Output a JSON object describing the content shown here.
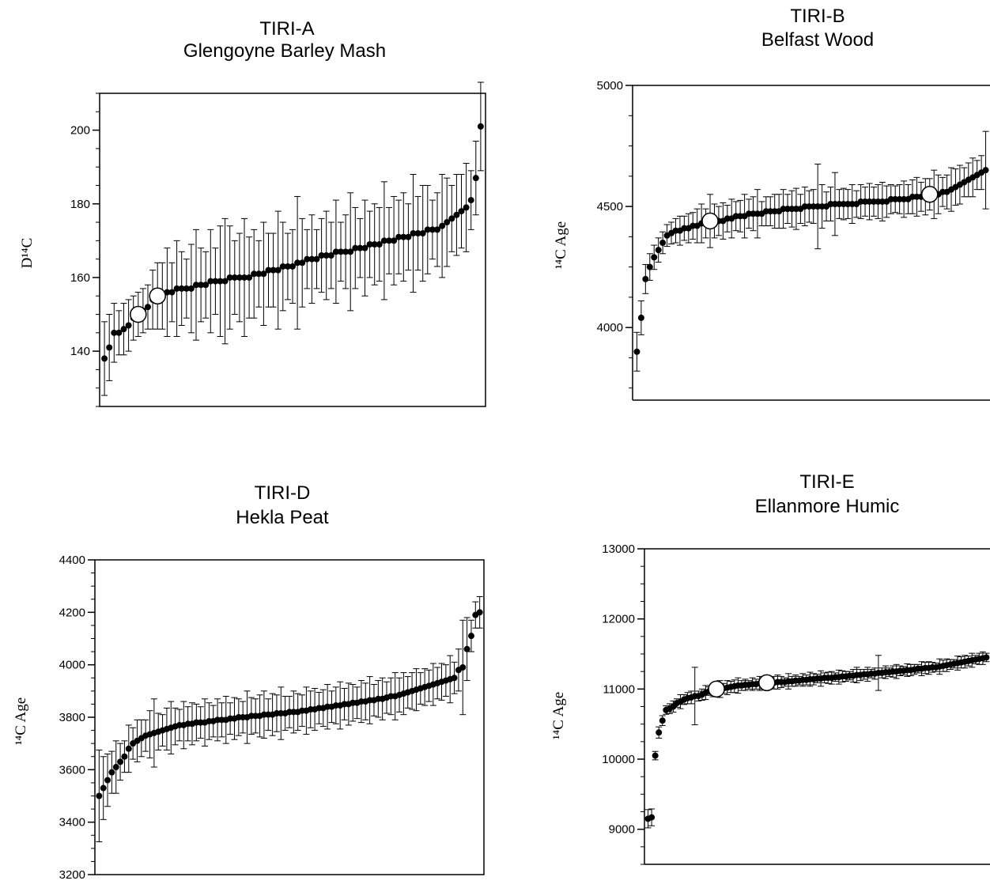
{
  "chart_data": [
    {
      "type": "scatter",
      "title": "TIRI-A",
      "subtitle": "Glengoyne Barley Mash",
      "ylabel": "D¹⁴C",
      "ylim": [
        125,
        210
      ],
      "yticks": [
        140,
        160,
        180,
        200
      ],
      "x_range": [
        0,
        80
      ],
      "n": 79,
      "y": [
        138,
        141,
        145,
        145,
        146,
        147,
        149,
        150,
        151,
        152,
        154,
        155,
        155,
        156,
        156,
        157,
        157,
        157,
        157,
        158,
        158,
        158,
        159,
        159,
        159,
        159,
        160,
        160,
        160,
        160,
        160,
        161,
        161,
        161,
        162,
        162,
        162,
        163,
        163,
        163,
        164,
        164,
        165,
        165,
        165,
        166,
        166,
        166,
        167,
        167,
        167,
        167,
        168,
        168,
        168,
        169,
        169,
        169,
        170,
        170,
        170,
        171,
        171,
        171,
        172,
        172,
        172,
        173,
        173,
        173,
        174,
        175,
        176,
        177,
        178,
        179,
        181,
        187,
        201
      ],
      "err": [
        10,
        9,
        8,
        6,
        7,
        7,
        6,
        6,
        6,
        6,
        8,
        9,
        9,
        12,
        8,
        13,
        10,
        8,
        12,
        15,
        10,
        9,
        14,
        9,
        15,
        17,
        14,
        10,
        12,
        16,
        11,
        12,
        9,
        14,
        10,
        10,
        16,
        12,
        9,
        10,
        18,
        12,
        8,
        12,
        8,
        10,
        12,
        9,
        14,
        8,
        10,
        16,
        11,
        8,
        13,
        9,
        11,
        10,
        16,
        9,
        12,
        10,
        12,
        9,
        16,
        10,
        13,
        12,
        8,
        10,
        14,
        12,
        9,
        11,
        10,
        12,
        8,
        10,
        12
      ],
      "reference_indices": [
        7,
        11
      ]
    },
    {
      "type": "scatter",
      "title": "TIRI-B",
      "subtitle": "Belfast Wood",
      "ylabel": "¹⁴C Age",
      "ylim": [
        3700,
        5000
      ],
      "yticks": [
        4000,
        4500,
        5000
      ],
      "x_range": [
        0,
        83
      ],
      "n": 82,
      "y": [
        3900,
        4040,
        4200,
        4250,
        4290,
        4320,
        4350,
        4380,
        4390,
        4400,
        4400,
        4410,
        4410,
        4420,
        4420,
        4430,
        4430,
        4440,
        4440,
        4440,
        4440,
        4450,
        4450,
        4460,
        4460,
        4460,
        4470,
        4470,
        4470,
        4470,
        4480,
        4480,
        4480,
        4480,
        4490,
        4490,
        4490,
        4490,
        4490,
        4500,
        4500,
        4500,
        4500,
        4500,
        4500,
        4510,
        4510,
        4510,
        4510,
        4510,
        4510,
        4510,
        4520,
        4520,
        4520,
        4520,
        4520,
        4520,
        4520,
        4530,
        4530,
        4530,
        4530,
        4530,
        4540,
        4540,
        4540,
        4540,
        4550,
        4550,
        4550,
        4560,
        4560,
        4570,
        4580,
        4590,
        4600,
        4610,
        4620,
        4630,
        4640,
        4650
      ],
      "err": [
        80,
        70,
        60,
        55,
        50,
        50,
        45,
        45,
        45,
        50,
        60,
        50,
        60,
        55,
        70,
        80,
        60,
        110,
        70,
        60,
        75,
        55,
        80,
        60,
        65,
        90,
        60,
        70,
        100,
        50,
        60,
        60,
        70,
        70,
        80,
        60,
        75,
        85,
        60,
        80,
        65,
        70,
        175,
        90,
        60,
        70,
        130,
        60,
        65,
        60,
        80,
        55,
        70,
        60,
        75,
        60,
        70,
        80,
        65,
        60,
        55,
        60,
        75,
        60,
        70,
        80,
        60,
        75,
        65,
        100,
        80,
        60,
        70,
        90,
        75,
        80,
        60,
        70,
        80,
        60,
        70,
        160
      ],
      "reference_indices": [
        17,
        68
      ]
    },
    {
      "type": "scatter",
      "title": "TIRI-D",
      "subtitle": "Hekla Peat",
      "ylabel": "¹⁴C Age",
      "ylim": [
        3200,
        4400
      ],
      "yticks": [
        3200,
        3400,
        3600,
        3800,
        4000,
        4200,
        4400
      ],
      "x_range": [
        0,
        92
      ],
      "n": 91,
      "y": [
        3500,
        3530,
        3560,
        3590,
        3610,
        3630,
        3650,
        3680,
        3700,
        3710,
        3720,
        3730,
        3735,
        3740,
        3745,
        3750,
        3755,
        3760,
        3765,
        3770,
        3770,
        3775,
        3775,
        3780,
        3780,
        3780,
        3785,
        3785,
        3790,
        3790,
        3790,
        3795,
        3795,
        3800,
        3800,
        3800,
        3805,
        3805,
        3805,
        3810,
        3810,
        3810,
        3815,
        3815,
        3815,
        3820,
        3820,
        3820,
        3825,
        3825,
        3830,
        3830,
        3835,
        3835,
        3840,
        3840,
        3845,
        3845,
        3850,
        3850,
        3855,
        3855,
        3860,
        3860,
        3865,
        3865,
        3870,
        3870,
        3875,
        3880,
        3880,
        3885,
        3890,
        3895,
        3900,
        3905,
        3910,
        3915,
        3920,
        3925,
        3930,
        3935,
        3940,
        3945,
        3950,
        3980,
        3990,
        4060,
        4110,
        4190,
        4200
      ],
      "err": [
        175,
        120,
        100,
        80,
        100,
        70,
        60,
        90,
        60,
        80,
        70,
        60,
        90,
        130,
        70,
        60,
        80,
        100,
        70,
        60,
        90,
        65,
        80,
        70,
        60,
        90,
        70,
        60,
        80,
        65,
        90,
        60,
        80,
        70,
        60,
        100,
        70,
        65,
        80,
        90,
        60,
        80,
        70,
        100,
        65,
        60,
        80,
        70,
        60,
        90,
        70,
        80,
        60,
        70,
        85,
        60,
        70,
        90,
        60,
        80,
        70,
        60,
        80,
        70,
        90,
        60,
        70,
        80,
        60,
        70,
        90,
        65,
        80,
        60,
        70,
        80,
        60,
        70,
        60,
        80,
        60,
        70,
        60,
        90,
        60,
        80,
        180,
        120,
        60,
        50,
        60
      ],
      "reference_indices": []
    },
    {
      "type": "scatter",
      "title": "TIRI-E",
      "subtitle": "Ellanmore Humic",
      "ylabel": "¹⁴C Age",
      "ylim": [
        8500,
        13000
      ],
      "yticks": [
        9000,
        10000,
        11000,
        12000,
        13000
      ],
      "x_range": [
        0,
        96
      ],
      "n": 95,
      "y": [
        9150,
        9170,
        10050,
        10380,
        10550,
        10700,
        10720,
        10750,
        10800,
        10820,
        10850,
        10870,
        10880,
        10900,
        10900,
        10920,
        10950,
        10970,
        10980,
        11000,
        11000,
        11010,
        11020,
        11030,
        11040,
        11050,
        11050,
        11060,
        11060,
        11070,
        11070,
        11080,
        11080,
        11090,
        11090,
        11090,
        11100,
        11100,
        11100,
        11110,
        11110,
        11120,
        11120,
        11130,
        11130,
        11140,
        11140,
        11150,
        11150,
        11160,
        11160,
        11160,
        11170,
        11170,
        11180,
        11180,
        11190,
        11190,
        11200,
        11200,
        11210,
        11210,
        11220,
        11220,
        11230,
        11230,
        11240,
        11240,
        11250,
        11250,
        11260,
        11260,
        11270,
        11270,
        11280,
        11290,
        11290,
        11300,
        11300,
        11310,
        11310,
        11320,
        11330,
        11340,
        11350,
        11360,
        11370,
        11380,
        11390,
        11400,
        11410,
        11420,
        11430,
        11440,
        11450
      ],
      "err": [
        130,
        120,
        60,
        80,
        70,
        60,
        70,
        80,
        60,
        100,
        70,
        80,
        90,
        410,
        70,
        80,
        100,
        60,
        90,
        80,
        120,
        70,
        100,
        80,
        90,
        110,
        70,
        80,
        60,
        90,
        70,
        100,
        80,
        60,
        70,
        90,
        100,
        80,
        60,
        110,
        70,
        80,
        60,
        90,
        70,
        100,
        80,
        60,
        110,
        70,
        80,
        90,
        60,
        100,
        80,
        70,
        60,
        90,
        110,
        80,
        70,
        100,
        60,
        80,
        250,
        70,
        90,
        60,
        80,
        100,
        70,
        60,
        90,
        80,
        70,
        60,
        100,
        80,
        90,
        70,
        60,
        110,
        80,
        90,
        70,
        60,
        100,
        80,
        90,
        70,
        100,
        60,
        80,
        90,
        60
      ],
      "reference_indices": [
        19,
        33
      ]
    }
  ]
}
